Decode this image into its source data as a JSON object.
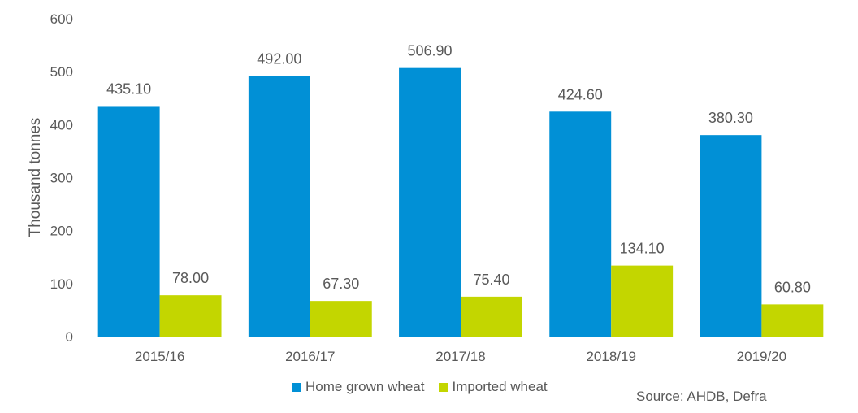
{
  "chart_data": {
    "type": "bar",
    "categories": [
      "2015/16",
      "2016/17",
      "2017/18",
      "2018/19",
      "2019/20"
    ],
    "series": [
      {
        "name": "Home grown wheat",
        "values": [
          435.1,
          492.0,
          506.9,
          424.6,
          380.3
        ],
        "color": "#0190D6"
      },
      {
        "name": "Imported wheat",
        "values": [
          78.0,
          67.3,
          75.4,
          134.1,
          60.8
        ],
        "color": "#C3D600"
      }
    ],
    "title": "",
    "xlabel": "",
    "ylabel": "Thousand tonnes",
    "ylim": [
      0,
      600
    ],
    "yticks": [
      0,
      100,
      200,
      300,
      400,
      500,
      600
    ],
    "data_label_decimals": 2,
    "grid": false,
    "legend_position": "bottom"
  },
  "source_text": "Source: AHDB, Defra"
}
